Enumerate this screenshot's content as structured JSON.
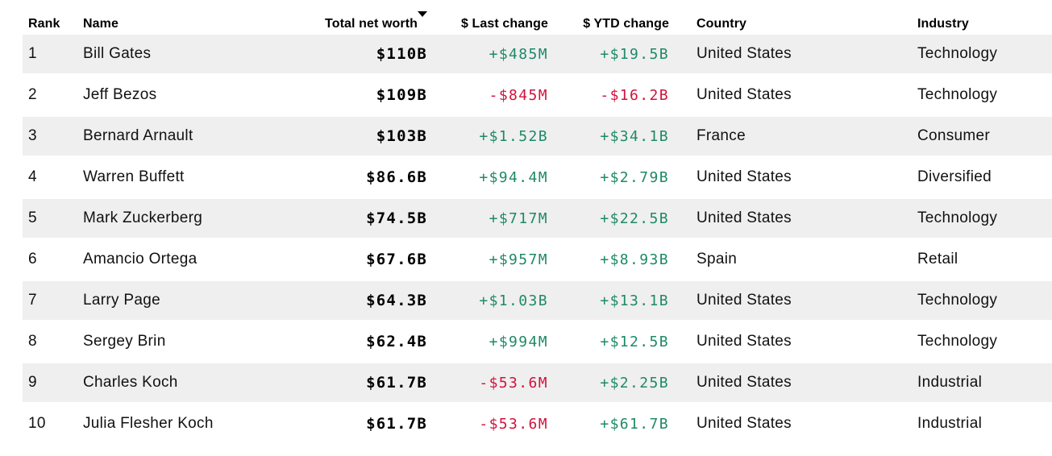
{
  "colors": {
    "positive": "#1e8968",
    "negative": "#d0123c",
    "stripe": "#efefef",
    "header_text": "#000000",
    "body_text": "#111111"
  },
  "table": {
    "columns": [
      {
        "label": "Rank"
      },
      {
        "label": "Name"
      },
      {
        "label": "Total net worth"
      },
      {
        "label": "$ Last change"
      },
      {
        "label": "$ YTD change"
      },
      {
        "label": "Country"
      },
      {
        "label": "Industry"
      }
    ],
    "sort": {
      "column": "Total net worth",
      "direction": "desc"
    },
    "rows": [
      {
        "rank": "1",
        "name": "Bill Gates",
        "net_worth": "$110B",
        "last_change": "+$485M",
        "ytd_change": "+$19.5B",
        "country": "United States",
        "industry": "Technology"
      },
      {
        "rank": "2",
        "name": "Jeff Bezos",
        "net_worth": "$109B",
        "last_change": "-$845M",
        "ytd_change": "-$16.2B",
        "country": "United States",
        "industry": "Technology"
      },
      {
        "rank": "3",
        "name": "Bernard Arnault",
        "net_worth": "$103B",
        "last_change": "+$1.52B",
        "ytd_change": "+$34.1B",
        "country": "France",
        "industry": "Consumer"
      },
      {
        "rank": "4",
        "name": "Warren Buffett",
        "net_worth": "$86.6B",
        "last_change": "+$94.4M",
        "ytd_change": "+$2.79B",
        "country": "United States",
        "industry": "Diversified"
      },
      {
        "rank": "5",
        "name": "Mark Zuckerberg",
        "net_worth": "$74.5B",
        "last_change": "+$717M",
        "ytd_change": "+$22.5B",
        "country": "United States",
        "industry": "Technology"
      },
      {
        "rank": "6",
        "name": "Amancio Ortega",
        "net_worth": "$67.6B",
        "last_change": "+$957M",
        "ytd_change": "+$8.93B",
        "country": "Spain",
        "industry": "Retail"
      },
      {
        "rank": "7",
        "name": "Larry Page",
        "net_worth": "$64.3B",
        "last_change": "+$1.03B",
        "ytd_change": "+$13.1B",
        "country": "United States",
        "industry": "Technology"
      },
      {
        "rank": "8",
        "name": "Sergey Brin",
        "net_worth": "$62.4B",
        "last_change": "+$994M",
        "ytd_change": "+$12.5B",
        "country": "United States",
        "industry": "Technology"
      },
      {
        "rank": "9",
        "name": "Charles Koch",
        "net_worth": "$61.7B",
        "last_change": "-$53.6M",
        "ytd_change": "+$2.25B",
        "country": "United States",
        "industry": "Industrial"
      },
      {
        "rank": "10",
        "name": "Julia Flesher Koch",
        "net_worth": "$61.7B",
        "last_change": "-$53.6M",
        "ytd_change": "+$61.7B",
        "country": "United States",
        "industry": "Industrial"
      }
    ]
  }
}
